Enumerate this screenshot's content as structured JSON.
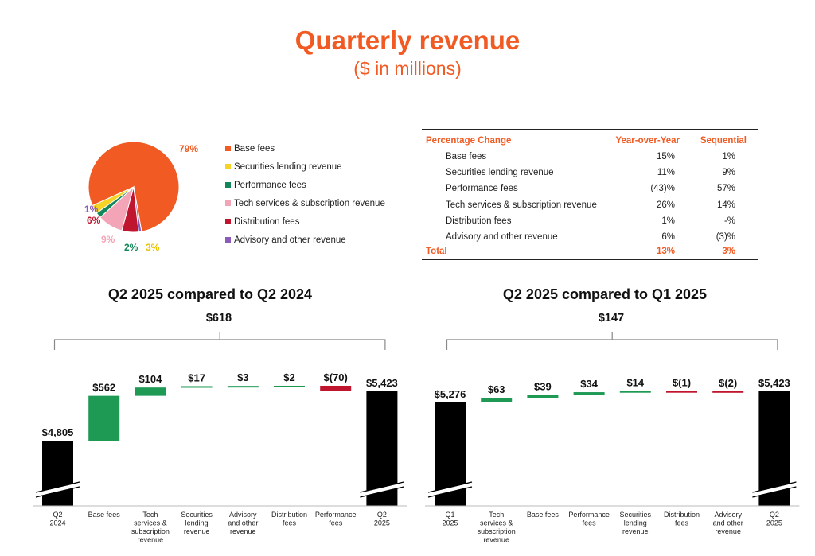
{
  "title": "Quarterly revenue",
  "subtitle": "($ in millions)",
  "colors": {
    "accent": "#f15a22",
    "base_fees": "#f15a22",
    "securities_lending": "#f5d327",
    "performance": "#14875a",
    "tech_services": "#f4a4b7",
    "distribution": "#c0152f",
    "advisory": "#8b5bb5",
    "increase": "#1f9a55",
    "decrease": "#c0152f",
    "total": "#000000"
  },
  "chart_data": [
    {
      "type": "pie",
      "slices": [
        {
          "name": "Base fees",
          "value": 79,
          "label": "79%",
          "color": "#f15a22"
        },
        {
          "name": "Securities lending revenue",
          "value": 3,
          "label": "3%",
          "color": "#f5d327"
        },
        {
          "name": "Performance fees",
          "value": 2,
          "label": "2%",
          "color": "#14875a"
        },
        {
          "name": "Tech services & subscription revenue",
          "value": 9,
          "label": "9%",
          "color": "#f4a4b7"
        },
        {
          "name": "Distribution fees",
          "value": 6,
          "label": "6%",
          "color": "#c0152f"
        },
        {
          "name": "Advisory and other revenue",
          "value": 1,
          "label": "1%",
          "color": "#8b5bb5"
        }
      ]
    },
    {
      "type": "table",
      "header": {
        "label": "Percentage Change",
        "yoy": "Year-over-Year",
        "seq": "Sequential"
      },
      "rows": [
        {
          "label": "Base fees",
          "yoy": "15%",
          "seq": "1%"
        },
        {
          "label": "Securities lending revenue",
          "yoy": "11%",
          "seq": "9%"
        },
        {
          "label": "Performance fees",
          "yoy": "(43)%",
          "seq": "57%"
        },
        {
          "label": "Tech services & subscription revenue",
          "yoy": "26%",
          "seq": "14%"
        },
        {
          "label": "Distribution fees",
          "yoy": "1%",
          "seq": "-%"
        },
        {
          "label": "Advisory and other revenue",
          "yoy": "6%",
          "seq": "(3)%"
        }
      ],
      "total": {
        "label": "Total",
        "yoy": "13%",
        "seq": "3%"
      }
    },
    {
      "type": "bar",
      "subtype": "waterfall",
      "title": "Q2 2025 compared to Q2 2024",
      "total_change_label": "$618",
      "start": 4805,
      "end": 5423,
      "steps": [
        {
          "category": "Q2\n2024",
          "kind": "total",
          "value": 4805,
          "label": "$4,805"
        },
        {
          "category": "Base fees",
          "kind": "delta",
          "value": 562,
          "label": "$562"
        },
        {
          "category": "Tech\nservices &\nsubscription\nrevenue",
          "kind": "delta",
          "value": 104,
          "label": "$104"
        },
        {
          "category": "Securities\nlending\nrevenue",
          "kind": "delta",
          "value": 17,
          "label": "$17"
        },
        {
          "category": "Advisory\nand other\nrevenue",
          "kind": "delta",
          "value": 3,
          "label": "$3"
        },
        {
          "category": "Distribution\nfees",
          "kind": "delta",
          "value": 2,
          "label": "$2"
        },
        {
          "category": "Performance\nfees",
          "kind": "delta",
          "value": -70,
          "label": "$(70)"
        },
        {
          "category": "Q2\n2025",
          "kind": "total",
          "value": 5423,
          "label": "$5,423"
        }
      ]
    },
    {
      "type": "bar",
      "subtype": "waterfall",
      "title": "Q2 2025 compared to Q1 2025",
      "total_change_label": "$147",
      "start": 5276,
      "end": 5423,
      "steps": [
        {
          "category": "Q1\n2025",
          "kind": "total",
          "value": 5276,
          "label": "$5,276"
        },
        {
          "category": "Tech\nservices &\nsubscription\nrevenue",
          "kind": "delta",
          "value": 63,
          "label": "$63"
        },
        {
          "category": "Base fees",
          "kind": "delta",
          "value": 39,
          "label": "$39"
        },
        {
          "category": "Performance\nfees",
          "kind": "delta",
          "value": 34,
          "label": "$34"
        },
        {
          "category": "Securities\nlending\nrevenue",
          "kind": "delta",
          "value": 14,
          "label": "$14"
        },
        {
          "category": "Distribution\nfees",
          "kind": "delta",
          "value": -1,
          "label": "$(1)"
        },
        {
          "category": "Advisory\nand other\nrevenue",
          "kind": "delta",
          "value": -2,
          "label": "$(2)"
        },
        {
          "category": "Q2\n2025",
          "kind": "total",
          "value": 5423,
          "label": "$5,423"
        }
      ]
    }
  ]
}
